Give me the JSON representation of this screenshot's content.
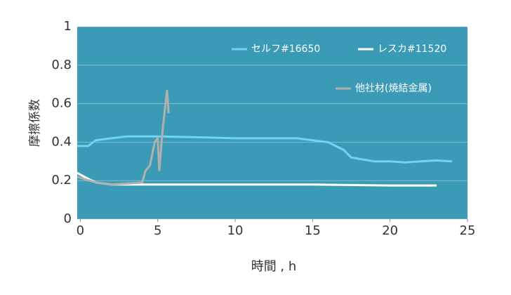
{
  "chart_data": {
    "type": "line",
    "x_label": "時間 , h",
    "y_label": "摩擦係数",
    "xlim": [
      -0.2,
      25
    ],
    "ylim": [
      0,
      1
    ],
    "xticks": [
      0,
      5,
      10,
      15,
      20,
      25
    ],
    "yticks": [
      0,
      0.2,
      0.4,
      0.6,
      0.8,
      1
    ],
    "grid": true,
    "background": "#3b9bb6",
    "series": [
      {
        "name": "セルフ#16650",
        "color": "#6fd3f2",
        "x": [
          -0.2,
          0.5,
          1,
          2,
          3,
          5,
          8,
          10,
          14,
          15,
          16,
          17,
          17.5,
          19,
          20,
          21,
          22,
          23,
          24
        ],
        "values": [
          0.38,
          0.38,
          0.41,
          0.42,
          0.43,
          0.43,
          0.425,
          0.42,
          0.42,
          0.41,
          0.4,
          0.36,
          0.32,
          0.3,
          0.3,
          0.295,
          0.3,
          0.305,
          0.3
        ]
      },
      {
        "name": "レスカ#11520",
        "color": "#ffffff",
        "x": [
          -0.2,
          0.5,
          1,
          2,
          5,
          10,
          15,
          20,
          23
        ],
        "values": [
          0.24,
          0.21,
          0.19,
          0.18,
          0.18,
          0.18,
          0.18,
          0.175,
          0.175
        ]
      },
      {
        "name": "他社材(焼結金属)",
        "color": "#b0b0ae",
        "x": [
          -0.2,
          1,
          2,
          4,
          4.2,
          4.5,
          4.8,
          5,
          5.1,
          5.3,
          5.5,
          5.6,
          5.7
        ],
        "values": [
          0.22,
          0.19,
          0.18,
          0.19,
          0.25,
          0.28,
          0.4,
          0.42,
          0.25,
          0.45,
          0.6,
          0.67,
          0.55
        ]
      }
    ]
  }
}
